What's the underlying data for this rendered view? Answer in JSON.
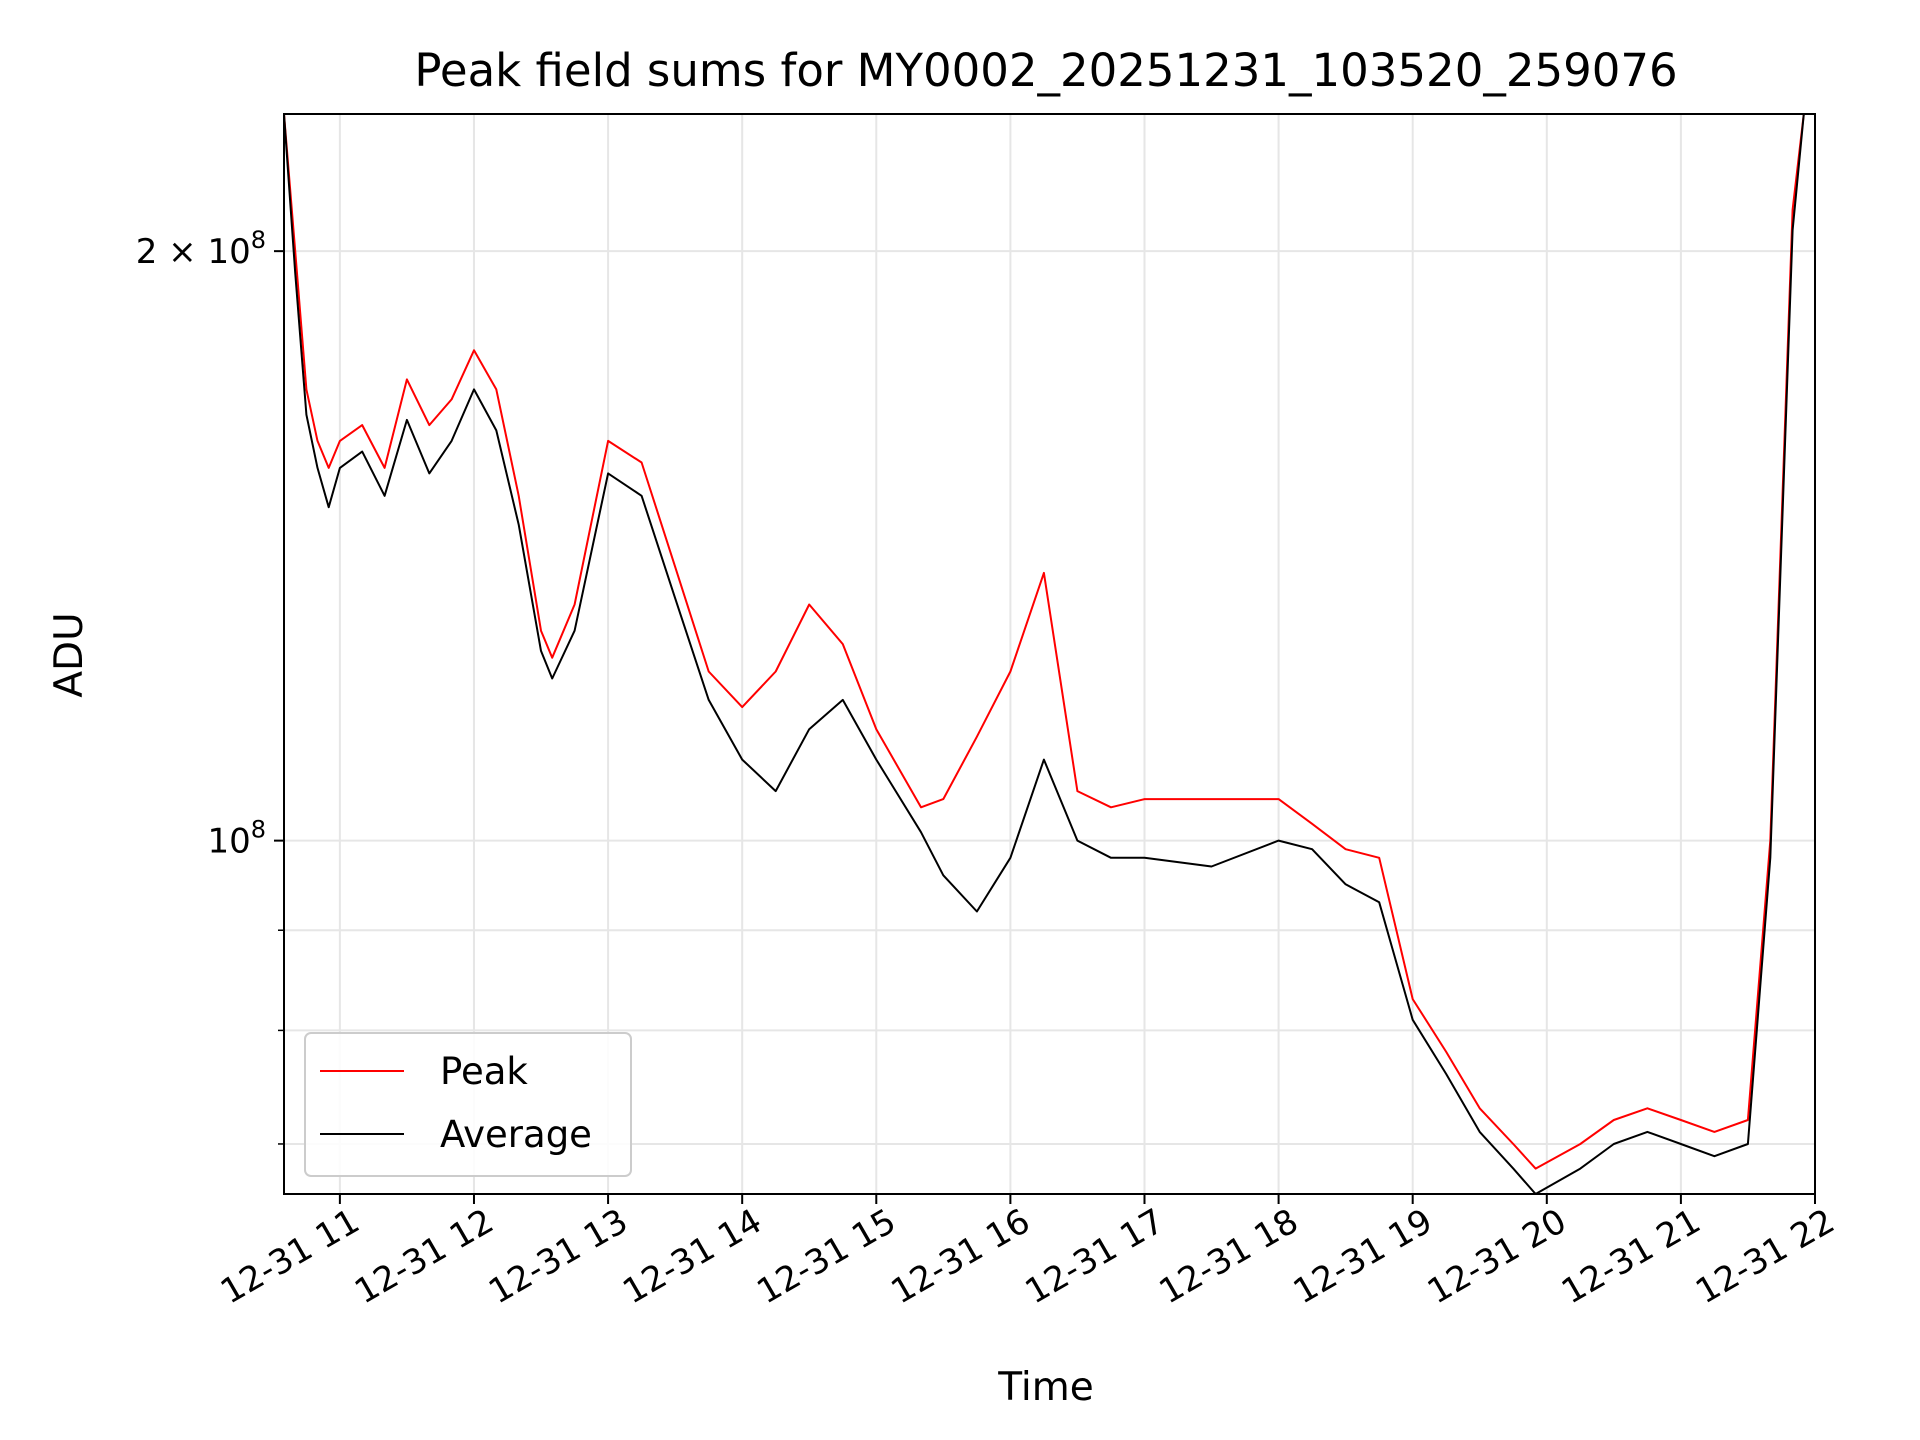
{
  "chart_data": {
    "type": "line",
    "title": "Peak field sums for MY0002_20251231_103520_259076",
    "xlabel": "Time",
    "ylabel": "ADU",
    "yscale": "log",
    "ylim": [
      66000000,
      235000000
    ],
    "xlim": [
      "2025-12-31 10:35",
      "2025-12-31 22:00"
    ],
    "grid": true,
    "legend_position": "lower-left",
    "x_ticks": [
      {
        "label": "12-31 11",
        "t": "2025-12-31 11:00"
      },
      {
        "label": "12-31 12",
        "t": "2025-12-31 12:00"
      },
      {
        "label": "12-31 13",
        "t": "2025-12-31 13:00"
      },
      {
        "label": "12-31 14",
        "t": "2025-12-31 14:00"
      },
      {
        "label": "12-31 15",
        "t": "2025-12-31 15:00"
      },
      {
        "label": "12-31 16",
        "t": "2025-12-31 16:00"
      },
      {
        "label": "12-31 17",
        "t": "2025-12-31 17:00"
      },
      {
        "label": "12-31 18",
        "t": "2025-12-31 18:00"
      },
      {
        "label": "12-31 19",
        "t": "2025-12-31 19:00"
      },
      {
        "label": "12-31 20",
        "t": "2025-12-31 20:00"
      },
      {
        "label": "12-31 21",
        "t": "2025-12-31 21:00"
      },
      {
        "label": "12-31 22",
        "t": "2025-12-31 22:00"
      }
    ],
    "y_ticks_major": [
      {
        "value": 100000000,
        "base": "10",
        "exp": "8",
        "coef": ""
      },
      {
        "value": 200000000,
        "base": "10",
        "exp": "8",
        "coef": "2 × "
      }
    ],
    "y_ticks_minor": [
      70000000,
      80000000,
      90000000
    ],
    "series": [
      {
        "name": "Peak",
        "color": "#ff0000",
        "x": [
          "2025-12-31 10:35",
          "2025-12-31 10:40",
          "2025-12-31 10:45",
          "2025-12-31 10:50",
          "2025-12-31 10:55",
          "2025-12-31 11:00",
          "2025-12-31 11:10",
          "2025-12-31 11:20",
          "2025-12-31 11:30",
          "2025-12-31 11:40",
          "2025-12-31 11:50",
          "2025-12-31 12:00",
          "2025-12-31 12:10",
          "2025-12-31 12:20",
          "2025-12-31 12:30",
          "2025-12-31 12:35",
          "2025-12-31 12:45",
          "2025-12-31 13:00",
          "2025-12-31 13:15",
          "2025-12-31 13:30",
          "2025-12-31 13:45",
          "2025-12-31 14:00",
          "2025-12-31 14:15",
          "2025-12-31 14:30",
          "2025-12-31 14:45",
          "2025-12-31 15:00",
          "2025-12-31 15:20",
          "2025-12-31 15:30",
          "2025-12-31 15:45",
          "2025-12-31 16:00",
          "2025-12-31 16:15",
          "2025-12-31 16:30",
          "2025-12-31 16:45",
          "2025-12-31 17:00",
          "2025-12-31 17:30",
          "2025-12-31 18:00",
          "2025-12-31 18:15",
          "2025-12-31 18:30",
          "2025-12-31 18:45",
          "2025-12-31 19:00",
          "2025-12-31 19:15",
          "2025-12-31 19:30",
          "2025-12-31 19:45",
          "2025-12-31 19:55",
          "2025-12-31 20:15",
          "2025-12-31 20:30",
          "2025-12-31 20:45",
          "2025-12-31 21:00",
          "2025-12-31 21:15",
          "2025-12-31 21:30",
          "2025-12-31 21:40",
          "2025-12-31 21:50",
          "2025-12-31 21:55"
        ],
        "values": [
          235000000,
          200000000,
          170000000,
          160000000,
          155000000,
          160000000,
          163000000,
          155000000,
          172000000,
          163000000,
          168000000,
          178000000,
          170000000,
          150000000,
          128000000,
          124000000,
          132000000,
          160000000,
          156000000,
          138000000,
          122000000,
          117000000,
          122000000,
          132000000,
          126000000,
          114000000,
          104000000,
          105000000,
          113000000,
          122000000,
          137000000,
          106000000,
          104000000,
          105000000,
          105000000,
          105000000,
          102000000,
          99000000,
          98000000,
          83000000,
          78000000,
          73000000,
          70000000,
          68000000,
          70000000,
          72000000,
          73000000,
          72000000,
          71000000,
          72000000,
          100000000,
          210000000,
          235000000
        ]
      },
      {
        "name": "Average",
        "color": "#000000",
        "x": [
          "2025-12-31 10:35",
          "2025-12-31 10:40",
          "2025-12-31 10:45",
          "2025-12-31 10:50",
          "2025-12-31 10:55",
          "2025-12-31 11:00",
          "2025-12-31 11:10",
          "2025-12-31 11:20",
          "2025-12-31 11:30",
          "2025-12-31 11:40",
          "2025-12-31 11:50",
          "2025-12-31 12:00",
          "2025-12-31 12:10",
          "2025-12-31 12:20",
          "2025-12-31 12:30",
          "2025-12-31 12:35",
          "2025-12-31 12:45",
          "2025-12-31 13:00",
          "2025-12-31 13:15",
          "2025-12-31 13:30",
          "2025-12-31 13:45",
          "2025-12-31 14:00",
          "2025-12-31 14:15",
          "2025-12-31 14:30",
          "2025-12-31 14:45",
          "2025-12-31 15:00",
          "2025-12-31 15:20",
          "2025-12-31 15:30",
          "2025-12-31 15:45",
          "2025-12-31 16:00",
          "2025-12-31 16:15",
          "2025-12-31 16:30",
          "2025-12-31 16:45",
          "2025-12-31 17:00",
          "2025-12-31 17:30",
          "2025-12-31 18:00",
          "2025-12-31 18:15",
          "2025-12-31 18:30",
          "2025-12-31 18:45",
          "2025-12-31 19:00",
          "2025-12-31 19:15",
          "2025-12-31 19:30",
          "2025-12-31 19:45",
          "2025-12-31 19:55",
          "2025-12-31 20:15",
          "2025-12-31 20:30",
          "2025-12-31 20:45",
          "2025-12-31 21:00",
          "2025-12-31 21:15",
          "2025-12-31 21:30",
          "2025-12-31 21:40",
          "2025-12-31 21:50",
          "2025-12-31 21:55"
        ],
        "values": [
          235000000,
          195000000,
          165000000,
          155000000,
          148000000,
          155000000,
          158000000,
          150000000,
          164000000,
          154000000,
          160000000,
          170000000,
          162000000,
          145000000,
          125000000,
          121000000,
          128000000,
          154000000,
          150000000,
          133000000,
          118000000,
          110000000,
          106000000,
          114000000,
          118000000,
          110000000,
          101000000,
          96000000,
          92000000,
          98000000,
          110000000,
          100000000,
          98000000,
          98000000,
          97000000,
          100000000,
          99000000,
          95000000,
          93000000,
          81000000,
          76000000,
          71000000,
          68000000,
          66000000,
          68000000,
          70000000,
          71000000,
          70000000,
          69000000,
          70000000,
          98000000,
          205000000,
          235000000
        ]
      }
    ]
  }
}
